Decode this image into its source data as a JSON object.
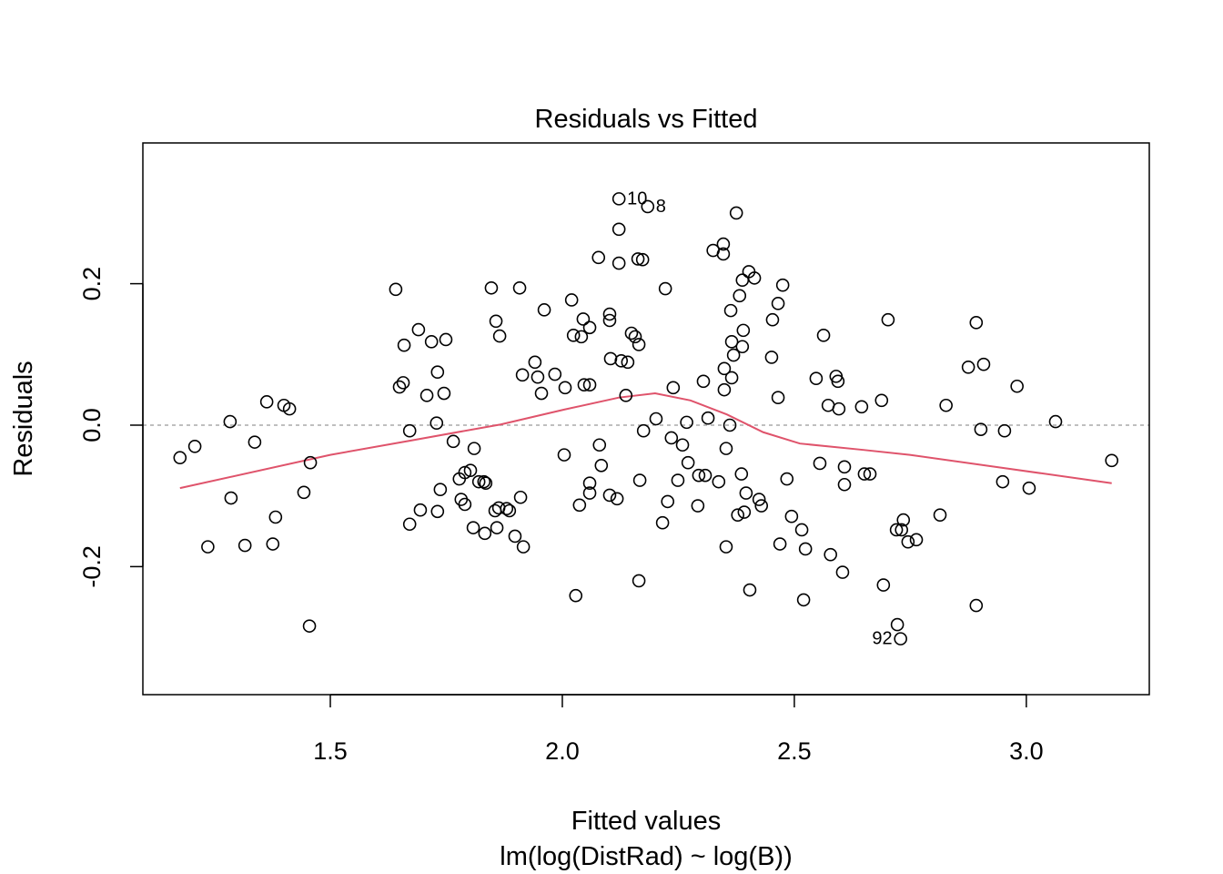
{
  "chart_data": {
    "type": "scatter",
    "title": "Residuals vs Fitted",
    "xlabel": "Fitted values",
    "subtitle": "lm(log(DistRad) ~ log(B))",
    "ylabel": "Residuals",
    "xlim": [
      1.096,
      3.265
    ],
    "ylim": [
      -0.381,
      0.399
    ],
    "xticks": [
      1.5,
      2.0,
      2.5,
      3.0
    ],
    "xtick_labels": [
      "1.5",
      "2.0",
      "2.5",
      "3.0"
    ],
    "yticks": [
      -0.2,
      0.0,
      0.2
    ],
    "ytick_labels": [
      "-0.2",
      "0.0",
      "0.2"
    ],
    "reference_line_y": 0.0,
    "colors": {
      "points": "#000000",
      "smooth": "#DF536B",
      "refline": "#AAAAAA"
    },
    "points": [
      [
        1.176,
        -0.046
      ],
      [
        1.208,
        -0.03
      ],
      [
        1.236,
        -0.172
      ],
      [
        1.284,
        0.005
      ],
      [
        1.286,
        -0.103
      ],
      [
        1.316,
        -0.17
      ],
      [
        1.337,
        -0.024
      ],
      [
        1.363,
        0.033
      ],
      [
        1.382,
        -0.13
      ],
      [
        1.376,
        -0.168
      ],
      [
        1.4,
        0.028
      ],
      [
        1.412,
        0.023
      ],
      [
        1.443,
        -0.095
      ],
      [
        1.457,
        -0.053
      ],
      [
        1.455,
        -0.284
      ],
      [
        1.641,
        0.192
      ],
      [
        1.649,
        0.054
      ],
      [
        1.657,
        0.06
      ],
      [
        1.659,
        0.113
      ],
      [
        1.671,
        -0.008
      ],
      [
        1.671,
        -0.14
      ],
      [
        1.69,
        0.135
      ],
      [
        1.694,
        -0.12
      ],
      [
        1.708,
        0.042
      ],
      [
        1.718,
        0.118
      ],
      [
        1.729,
        0.003
      ],
      [
        1.731,
        0.075
      ],
      [
        1.731,
        -0.122
      ],
      [
        1.737,
        -0.091
      ],
      [
        1.745,
        0.045
      ],
      [
        1.749,
        0.121
      ],
      [
        1.765,
        -0.023
      ],
      [
        1.778,
        -0.076
      ],
      [
        1.782,
        -0.105
      ],
      [
        1.79,
        -0.112
      ],
      [
        1.79,
        -0.067
      ],
      [
        1.802,
        -0.064
      ],
      [
        1.808,
        -0.145
      ],
      [
        1.81,
        -0.033
      ],
      [
        1.82,
        -0.08
      ],
      [
        1.831,
        -0.08
      ],
      [
        1.833,
        -0.153
      ],
      [
        1.835,
        -0.082
      ],
      [
        1.847,
        0.194
      ],
      [
        1.855,
        -0.121
      ],
      [
        1.859,
        -0.145
      ],
      [
        1.857,
        0.147
      ],
      [
        1.863,
        -0.117
      ],
      [
        1.865,
        0.126
      ],
      [
        1.88,
        -0.118
      ],
      [
        1.886,
        -0.121
      ],
      [
        1.898,
        -0.157
      ],
      [
        1.908,
        0.194
      ],
      [
        1.91,
        -0.102
      ],
      [
        1.914,
        0.071
      ],
      [
        1.916,
        -0.172
      ],
      [
        1.941,
        0.089
      ],
      [
        1.947,
        0.068
      ],
      [
        1.955,
        0.045
      ],
      [
        1.961,
        0.163
      ],
      [
        1.984,
        0.072
      ],
      [
        2.004,
        -0.042
      ],
      [
        2.006,
        0.053
      ],
      [
        2.02,
        0.177
      ],
      [
        2.024,
        0.127
      ],
      [
        2.029,
        -0.241
      ],
      [
        2.037,
        -0.113
      ],
      [
        2.041,
        0.125
      ],
      [
        2.045,
        0.15
      ],
      [
        2.047,
        0.057
      ],
      [
        2.059,
        -0.082
      ],
      [
        2.059,
        -0.096
      ],
      [
        2.059,
        0.057
      ],
      [
        2.059,
        0.138
      ],
      [
        2.078,
        0.237
      ],
      [
        2.08,
        -0.028
      ],
      [
        2.084,
        -0.057
      ],
      [
        2.102,
        0.157
      ],
      [
        2.102,
        0.148
      ],
      [
        2.102,
        -0.099
      ],
      [
        2.104,
        0.094
      ],
      [
        2.118,
        -0.104
      ],
      [
        2.122,
        0.32
      ],
      [
        2.122,
        0.277
      ],
      [
        2.122,
        0.229
      ],
      [
        2.127,
        0.091
      ],
      [
        2.137,
        0.042
      ],
      [
        2.141,
        0.089
      ],
      [
        2.149,
        0.13
      ],
      [
        2.157,
        0.125
      ],
      [
        2.163,
        0.235
      ],
      [
        2.165,
        0.114
      ],
      [
        2.165,
        -0.22
      ],
      [
        2.167,
        -0.078
      ],
      [
        2.173,
        0.234
      ],
      [
        2.175,
        -0.008
      ],
      [
        2.184,
        0.309
      ],
      [
        2.202,
        0.009
      ],
      [
        2.216,
        -0.138
      ],
      [
        2.222,
        0.193
      ],
      [
        2.227,
        -0.108
      ],
      [
        2.235,
        -0.018
      ],
      [
        2.239,
        0.053
      ],
      [
        2.249,
        -0.078
      ],
      [
        2.259,
        -0.028
      ],
      [
        2.268,
        0.004
      ],
      [
        2.271,
        -0.053
      ],
      [
        2.292,
        -0.114
      ],
      [
        2.294,
        -0.071
      ],
      [
        2.304,
        0.062
      ],
      [
        2.308,
        -0.071
      ],
      [
        2.314,
        0.01
      ],
      [
        2.325,
        0.247
      ],
      [
        2.337,
        -0.08
      ],
      [
        2.347,
        0.256
      ],
      [
        2.347,
        0.242
      ],
      [
        2.349,
        0.08
      ],
      [
        2.349,
        0.05
      ],
      [
        2.353,
        -0.172
      ],
      [
        2.353,
        -0.033
      ],
      [
        2.361,
        0.0
      ],
      [
        2.363,
        0.162
      ],
      [
        2.365,
        0.118
      ],
      [
        2.365,
        0.067
      ],
      [
        2.369,
        0.099
      ],
      [
        2.375,
        0.3
      ],
      [
        2.378,
        -0.127
      ],
      [
        2.382,
        0.183
      ],
      [
        2.386,
        -0.069
      ],
      [
        2.388,
        0.205
      ],
      [
        2.388,
        0.111
      ],
      [
        2.39,
        0.134
      ],
      [
        2.392,
        -0.123
      ],
      [
        2.396,
        -0.096
      ],
      [
        2.402,
        0.217
      ],
      [
        2.404,
        -0.233
      ],
      [
        2.414,
        0.208
      ],
      [
        2.424,
        -0.105
      ],
      [
        2.429,
        -0.114
      ],
      [
        2.451,
        0.096
      ],
      [
        2.453,
        0.149
      ],
      [
        2.465,
        0.172
      ],
      [
        2.465,
        0.039
      ],
      [
        2.469,
        -0.168
      ],
      [
        2.475,
        0.198
      ],
      [
        2.484,
        -0.076
      ],
      [
        2.494,
        -0.129
      ],
      [
        2.516,
        -0.148
      ],
      [
        2.52,
        -0.247
      ],
      [
        2.524,
        -0.175
      ],
      [
        2.547,
        0.066
      ],
      [
        2.555,
        -0.054
      ],
      [
        2.563,
        0.127
      ],
      [
        2.573,
        0.028
      ],
      [
        2.578,
        -0.183
      ],
      [
        2.59,
        0.069
      ],
      [
        2.594,
        0.062
      ],
      [
        2.596,
        0.023
      ],
      [
        2.604,
        -0.208
      ],
      [
        2.608,
        -0.059
      ],
      [
        2.608,
        -0.084
      ],
      [
        2.645,
        0.026
      ],
      [
        2.651,
        -0.069
      ],
      [
        2.663,
        -0.069
      ],
      [
        2.688,
        0.035
      ],
      [
        2.692,
        -0.226
      ],
      [
        2.702,
        0.149
      ],
      [
        2.72,
        -0.148
      ],
      [
        2.722,
        -0.282
      ],
      [
        2.729,
        -0.302
      ],
      [
        2.731,
        -0.148
      ],
      [
        2.735,
        -0.134
      ],
      [
        2.745,
        -0.165
      ],
      [
        2.763,
        -0.162
      ],
      [
        2.814,
        -0.127
      ],
      [
        2.827,
        0.028
      ],
      [
        2.875,
        0.082
      ],
      [
        2.892,
        0.145
      ],
      [
        2.892,
        -0.255
      ],
      [
        2.902,
        -0.006
      ],
      [
        2.908,
        0.086
      ],
      [
        2.949,
        -0.08
      ],
      [
        2.953,
        -0.008
      ],
      [
        2.98,
        0.055
      ],
      [
        3.006,
        -0.089
      ],
      [
        3.063,
        0.005
      ],
      [
        3.184,
        -0.05
      ]
    ],
    "smooth": [
      [
        1.176,
        -0.089
      ],
      [
        1.5,
        -0.042
      ],
      [
        1.671,
        -0.022
      ],
      [
        1.867,
        0.001
      ],
      [
        2.004,
        0.022
      ],
      [
        2.122,
        0.039
      ],
      [
        2.2,
        0.045
      ],
      [
        2.276,
        0.035
      ],
      [
        2.355,
        0.015
      ],
      [
        2.433,
        -0.01
      ],
      [
        2.512,
        -0.026
      ],
      [
        2.649,
        -0.035
      ],
      [
        2.749,
        -0.042
      ],
      [
        2.945,
        -0.06
      ],
      [
        3.184,
        -0.082
      ]
    ],
    "point_labels": [
      {
        "text": "10",
        "x": 2.122,
        "y": 0.32,
        "side": "right"
      },
      {
        "text": "8",
        "x": 2.184,
        "y": 0.309,
        "side": "left"
      },
      {
        "text": "92",
        "x": 2.729,
        "y": -0.302,
        "side": "left"
      }
    ]
  }
}
